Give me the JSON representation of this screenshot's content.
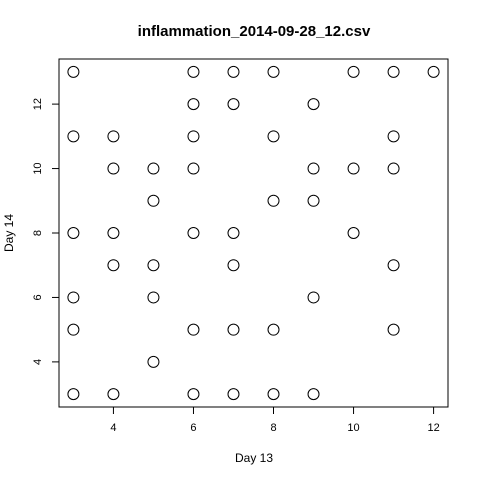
{
  "chart_data": {
    "type": "scatter",
    "title": "inflammation_2014-09-28_12.csv",
    "xlabel": "Day 13",
    "ylabel": "Day 14",
    "xlim": [
      2.64,
      12.36
    ],
    "ylim": [
      2.6,
      13.4
    ],
    "x_ticks": [
      4,
      6,
      8,
      10,
      12
    ],
    "y_ticks": [
      4,
      6,
      8,
      10,
      12
    ],
    "grid": false,
    "points": [
      {
        "x": 3,
        "y": 13
      },
      {
        "x": 6,
        "y": 13
      },
      {
        "x": 7,
        "y": 13
      },
      {
        "x": 8,
        "y": 13
      },
      {
        "x": 10,
        "y": 13
      },
      {
        "x": 11,
        "y": 13
      },
      {
        "x": 12,
        "y": 13
      },
      {
        "x": 6,
        "y": 12
      },
      {
        "x": 7,
        "y": 12
      },
      {
        "x": 9,
        "y": 12
      },
      {
        "x": 3,
        "y": 11
      },
      {
        "x": 4,
        "y": 11
      },
      {
        "x": 6,
        "y": 11
      },
      {
        "x": 8,
        "y": 11
      },
      {
        "x": 11,
        "y": 11
      },
      {
        "x": 4,
        "y": 10
      },
      {
        "x": 5,
        "y": 10
      },
      {
        "x": 6,
        "y": 10
      },
      {
        "x": 9,
        "y": 10
      },
      {
        "x": 10,
        "y": 10
      },
      {
        "x": 11,
        "y": 10
      },
      {
        "x": 5,
        "y": 9
      },
      {
        "x": 8,
        "y": 9
      },
      {
        "x": 9,
        "y": 9
      },
      {
        "x": 3,
        "y": 8
      },
      {
        "x": 4,
        "y": 8
      },
      {
        "x": 6,
        "y": 8
      },
      {
        "x": 7,
        "y": 8
      },
      {
        "x": 10,
        "y": 8
      },
      {
        "x": 4,
        "y": 7
      },
      {
        "x": 5,
        "y": 7
      },
      {
        "x": 7,
        "y": 7
      },
      {
        "x": 11,
        "y": 7
      },
      {
        "x": 3,
        "y": 6
      },
      {
        "x": 5,
        "y": 6
      },
      {
        "x": 9,
        "y": 6
      },
      {
        "x": 3,
        "y": 5
      },
      {
        "x": 6,
        "y": 5
      },
      {
        "x": 7,
        "y": 5
      },
      {
        "x": 8,
        "y": 5
      },
      {
        "x": 11,
        "y": 5
      },
      {
        "x": 5,
        "y": 4
      },
      {
        "x": 3,
        "y": 3
      },
      {
        "x": 4,
        "y": 3
      },
      {
        "x": 6,
        "y": 3
      },
      {
        "x": 7,
        "y": 3
      },
      {
        "x": 8,
        "y": 3
      },
      {
        "x": 9,
        "y": 3
      }
    ]
  }
}
